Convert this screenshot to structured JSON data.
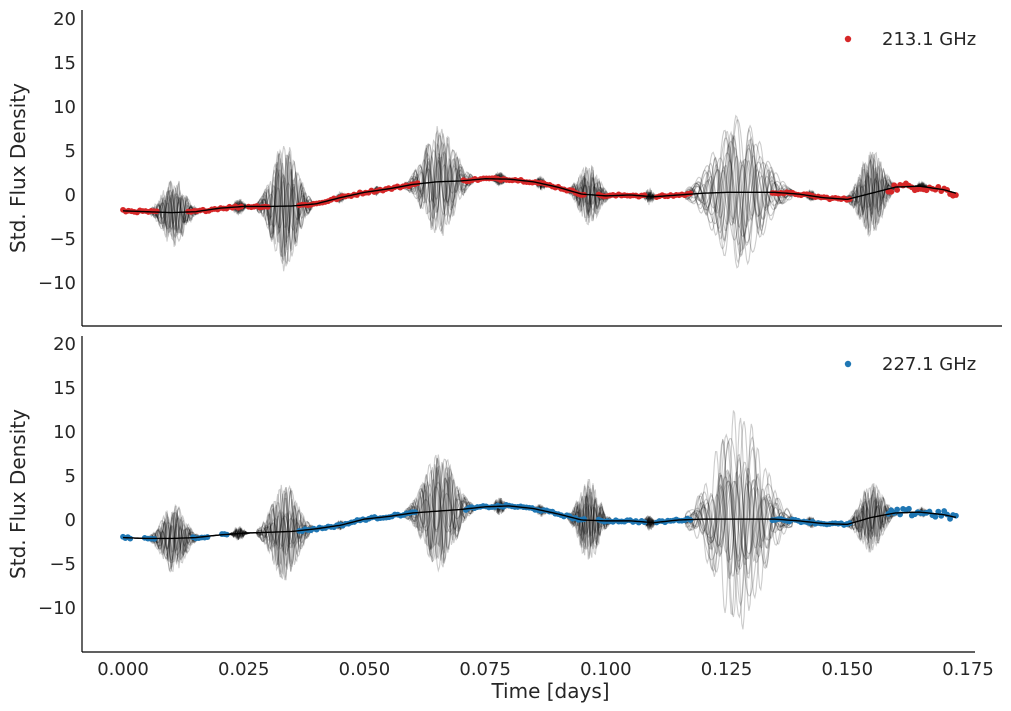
{
  "chart_data": [
    {
      "type": "scatter",
      "panel": "top",
      "xlim": [
        -0.0087,
        0.1815
      ],
      "ylim": [
        -14.7,
        20.4
      ],
      "yticks": [
        -10,
        -5,
        0,
        5,
        10,
        15,
        20
      ],
      "ytick_labels": [
        "−10",
        "−5",
        "0",
        "5",
        "10",
        "15",
        "20"
      ],
      "xticks": [],
      "xlabel": "",
      "ylabel": "Std. Flux Density",
      "legend": "top-right",
      "series": [
        {
          "name": "213.1 GHz",
          "role": "observed",
          "color": "#d62728",
          "segments": [
            [
              0.0,
              0.007
            ],
            [
              0.0135,
              0.0245
            ],
            [
              0.026,
              0.03
            ],
            [
              0.0365,
              0.061
            ],
            [
              0.0705,
              0.0955
            ],
            [
              0.0985,
              0.108
            ],
            [
              0.1105,
              0.1175
            ],
            [
              0.1345,
              0.1505
            ],
            [
              0.1585,
              0.1725
            ]
          ]
        }
      ],
      "baseline": {
        "x": [
          0.0,
          0.005,
          0.01,
          0.015,
          0.02,
          0.025,
          0.03,
          0.035,
          0.04,
          0.045,
          0.05,
          0.055,
          0.06,
          0.065,
          0.07,
          0.075,
          0.08,
          0.085,
          0.09,
          0.095,
          0.1,
          0.105,
          0.11,
          0.115,
          0.12,
          0.125,
          0.13,
          0.135,
          0.14,
          0.145,
          0.15,
          0.155,
          0.16,
          0.165,
          0.17,
          0.1725
        ],
        "y": [
          -1.8,
          -1.9,
          -2.0,
          -1.9,
          -1.5,
          -1.3,
          -1.3,
          -1.25,
          -1.0,
          -0.3,
          0.3,
          0.7,
          1.2,
          1.5,
          1.6,
          1.85,
          1.8,
          1.5,
          0.9,
          0.1,
          -0.1,
          0.0,
          -0.2,
          0.0,
          0.2,
          0.3,
          0.3,
          0.3,
          0.1,
          -0.3,
          -0.5,
          0.2,
          0.9,
          1.0,
          0.6,
          0.2
        ]
      },
      "model_bursts": {
        "samples": 20,
        "color": "#000000",
        "centers": [
          0.0105,
          0.0335,
          0.0655,
          0.0965,
          0.1275,
          0.155
        ],
        "half_widths": [
          0.004,
          0.0045,
          0.0055,
          0.0035,
          0.0085,
          0.004
        ],
        "amplitudes": [
          3.5,
          6.0,
          5.2,
          3.0,
          7.2,
          4.0
        ],
        "ripples": [
          {
            "center": 0.024,
            "half_width": 0.0015,
            "amplitude": 0.8
          },
          {
            "center": 0.045,
            "half_width": 0.0012,
            "amplitude": 0.6
          },
          {
            "center": 0.0525,
            "half_width": 0.001,
            "amplitude": 0.5
          },
          {
            "center": 0.078,
            "half_width": 0.0015,
            "amplitude": 0.8
          },
          {
            "center": 0.0865,
            "half_width": 0.0012,
            "amplitude": 0.7
          },
          {
            "center": 0.109,
            "half_width": 0.0012,
            "amplitude": 0.8
          },
          {
            "center": 0.1425,
            "half_width": 0.0012,
            "amplitude": 0.6
          },
          {
            "center": 0.1655,
            "half_width": 0.0012,
            "amplitude": 0.5
          }
        ]
      }
    },
    {
      "type": "scatter",
      "panel": "bottom",
      "xlim": [
        -0.0087,
        0.1815
      ],
      "ylim": [
        -14.7,
        20.4
      ],
      "yticks": [
        -10,
        -5,
        0,
        5,
        10,
        15,
        20
      ],
      "ytick_labels": [
        "−10",
        "−5",
        "0",
        "5",
        "10",
        "15",
        "20"
      ],
      "xticks": [
        0.0,
        0.025,
        0.05,
        0.075,
        0.1,
        0.125,
        0.15,
        0.175
      ],
      "xtick_labels": [
        "0.000",
        "0.025",
        "0.050",
        "0.075",
        "0.100",
        "0.125",
        "0.150",
        "0.175"
      ],
      "xlabel": "Time [days]",
      "ylabel": "Std. Flux Density",
      "legend": "top-right",
      "series": [
        {
          "name": "227.1 GHz",
          "role": "observed",
          "color": "#1f77b4",
          "segments": [
            [
              0.0,
              0.0015
            ],
            [
              0.0045,
              0.0065
            ],
            [
              0.0145,
              0.0175
            ],
            [
              0.0205,
              0.0215
            ],
            [
              0.0365,
              0.0605
            ],
            [
              0.071,
              0.0955
            ],
            [
              0.0985,
              0.108
            ],
            [
              0.1105,
              0.1175
            ],
            [
              0.1345,
              0.1505
            ],
            [
              0.1585,
              0.1725
            ]
          ]
        }
      ],
      "baseline": {
        "x": [
          0.0,
          0.005,
          0.01,
          0.015,
          0.02,
          0.025,
          0.03,
          0.035,
          0.04,
          0.045,
          0.05,
          0.055,
          0.06,
          0.065,
          0.07,
          0.075,
          0.08,
          0.085,
          0.09,
          0.095,
          0.1,
          0.105,
          0.11,
          0.115,
          0.12,
          0.125,
          0.13,
          0.135,
          0.14,
          0.145,
          0.15,
          0.155,
          0.16,
          0.165,
          0.17,
          0.1725
        ],
        "y": [
          -2.0,
          -2.1,
          -2.1,
          -2.0,
          -1.7,
          -1.5,
          -1.4,
          -1.3,
          -1.0,
          -0.6,
          0.1,
          0.4,
          0.8,
          1.0,
          1.2,
          1.5,
          1.6,
          1.3,
          0.7,
          0.0,
          -0.1,
          -0.1,
          -0.3,
          0.0,
          0.1,
          0.1,
          0.1,
          0.1,
          -0.1,
          -0.4,
          -0.5,
          0.3,
          0.8,
          0.9,
          0.6,
          0.3
        ]
      },
      "model_bursts": {
        "samples": 20,
        "color": "#000000",
        "centers": [
          0.0105,
          0.0335,
          0.0655,
          0.0965,
          0.1275,
          0.155
        ],
        "half_widths": [
          0.004,
          0.0045,
          0.0055,
          0.0035,
          0.0085,
          0.004
        ],
        "amplitudes": [
          3.8,
          4.5,
          6.0,
          4.0,
          10.5,
          3.2
        ],
        "ripples": [
          {
            "center": 0.024,
            "half_width": 0.0015,
            "amplitude": 0.7
          },
          {
            "center": 0.045,
            "half_width": 0.0012,
            "amplitude": 0.6
          },
          {
            "center": 0.078,
            "half_width": 0.0015,
            "amplitude": 0.8
          },
          {
            "center": 0.0865,
            "half_width": 0.0012,
            "amplitude": 0.7
          },
          {
            "center": 0.109,
            "half_width": 0.0012,
            "amplitude": 0.8
          },
          {
            "center": 0.1425,
            "half_width": 0.0012,
            "amplitude": 0.6
          },
          {
            "center": 0.1655,
            "half_width": 0.0012,
            "amplitude": 0.5
          }
        ]
      }
    }
  ]
}
